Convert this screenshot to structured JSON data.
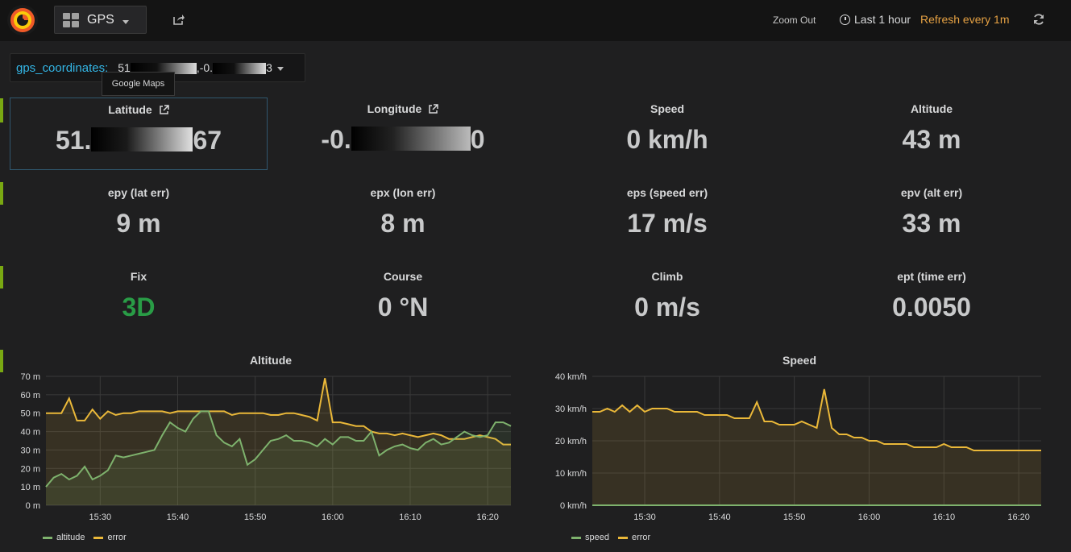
{
  "topbar": {
    "dashboard_title": "GPS",
    "zoom_out": "Zoom Out",
    "time_range": "Last 1 hour",
    "refresh": "Refresh every 1m"
  },
  "variable": {
    "label": "gps_coordinates:",
    "value_prefix": "51",
    "value_mid": ",-0.",
    "value_suffix": "3",
    "tooltip": "Google Maps"
  },
  "stats": [
    {
      "title": "Latitude",
      "value_prefix": "51.",
      "value_suffix": "67"
    },
    {
      "title": "Longitude",
      "value_prefix": "-0.",
      "value_suffix": "0"
    },
    {
      "title": "Speed",
      "value": "0 km/h"
    },
    {
      "title": "Altitude",
      "value": "43 m"
    },
    {
      "title": "epy (lat err)",
      "value": "9 m"
    },
    {
      "title": "epx (lon err)",
      "value": "8 m"
    },
    {
      "title": "eps (speed err)",
      "value": "17 m/s"
    },
    {
      "title": "epv (alt err)",
      "value": "33 m"
    },
    {
      "title": "Fix",
      "value": "3D"
    },
    {
      "title": "Course",
      "value": "0 °N"
    },
    {
      "title": "Climb",
      "value": "0 m/s"
    },
    {
      "title": "ept (time err)",
      "value": "0.0050"
    }
  ],
  "colors": {
    "accent": "#e5a143",
    "green": "#299c46",
    "series_green": "#7eb26d",
    "series_yellow": "#eab839"
  },
  "chart_data": [
    {
      "type": "line",
      "title": "Altitude",
      "ylim": [
        0,
        70
      ],
      "yticks": [
        "0 m",
        "10 m",
        "20 m",
        "30 m",
        "40 m",
        "50 m",
        "60 m",
        "70 m"
      ],
      "xlim": [
        "15:23",
        "16:23"
      ],
      "xticks": [
        "15:30",
        "15:40",
        "15:50",
        "16:00",
        "16:10",
        "16:20"
      ],
      "x": [
        "15:23",
        "15:24",
        "15:25",
        "15:26",
        "15:27",
        "15:28",
        "15:29",
        "15:30",
        "15:31",
        "15:32",
        "15:33",
        "15:34",
        "15:35",
        "15:36",
        "15:37",
        "15:38",
        "15:39",
        "15:40",
        "15:41",
        "15:42",
        "15:43",
        "15:44",
        "15:45",
        "15:46",
        "15:47",
        "15:48",
        "15:49",
        "15:50",
        "15:51",
        "15:52",
        "15:53",
        "15:54",
        "15:55",
        "15:56",
        "15:57",
        "15:58",
        "15:59",
        "16:00",
        "16:01",
        "16:02",
        "16:03",
        "16:04",
        "16:05",
        "16:06",
        "16:07",
        "16:08",
        "16:09",
        "16:10",
        "16:11",
        "16:12",
        "16:13",
        "16:14",
        "16:15",
        "16:16",
        "16:17",
        "16:18",
        "16:19",
        "16:20",
        "16:21",
        "16:22",
        "16:23"
      ],
      "series": [
        {
          "name": "altitude",
          "values": [
            10,
            15,
            17,
            14,
            16,
            21,
            14,
            16,
            19,
            27,
            26,
            27,
            28,
            29,
            30,
            38,
            45,
            42,
            40,
            47,
            51,
            51,
            38,
            34,
            32,
            36,
            22,
            25,
            30,
            35,
            36,
            38,
            35,
            35,
            34,
            32,
            36,
            33,
            37,
            37,
            35,
            35,
            40,
            27,
            30,
            32,
            33,
            31,
            30,
            34,
            36,
            33,
            34,
            37,
            40,
            38,
            37,
            38,
            45,
            45,
            43
          ]
        },
        {
          "name": "error",
          "values": [
            50,
            50,
            50,
            58,
            46,
            46,
            52,
            47,
            51,
            49,
            50,
            50,
            51,
            51,
            51,
            51,
            50,
            51,
            51,
            51,
            51,
            51,
            51,
            51,
            49,
            50,
            50,
            50,
            50,
            49,
            49,
            50,
            50,
            49,
            48,
            46,
            69,
            45,
            45,
            44,
            43,
            43,
            40,
            39,
            39,
            38,
            39,
            38,
            37,
            38,
            39,
            38,
            36,
            36,
            36,
            37,
            38,
            37,
            36,
            33,
            33
          ]
        }
      ]
    },
    {
      "type": "line",
      "title": "Speed",
      "ylim": [
        0,
        40
      ],
      "yticks": [
        "0 km/h",
        "10 km/h",
        "20 km/h",
        "30 km/h",
        "40 km/h"
      ],
      "xlim": [
        "15:23",
        "16:23"
      ],
      "xticks": [
        "15:30",
        "15:40",
        "15:50",
        "16:00",
        "16:10",
        "16:20"
      ],
      "x": [
        "15:23",
        "15:24",
        "15:25",
        "15:26",
        "15:27",
        "15:28",
        "15:29",
        "15:30",
        "15:31",
        "15:32",
        "15:33",
        "15:34",
        "15:35",
        "15:36",
        "15:37",
        "15:38",
        "15:39",
        "15:40",
        "15:41",
        "15:42",
        "15:43",
        "15:44",
        "15:45",
        "15:46",
        "15:47",
        "15:48",
        "15:49",
        "15:50",
        "15:51",
        "15:52",
        "15:53",
        "15:54",
        "15:55",
        "15:56",
        "15:57",
        "15:58",
        "15:59",
        "16:00",
        "16:01",
        "16:02",
        "16:03",
        "16:04",
        "16:05",
        "16:06",
        "16:07",
        "16:08",
        "16:09",
        "16:10",
        "16:11",
        "16:12",
        "16:13",
        "16:14",
        "16:15",
        "16:16",
        "16:17",
        "16:18",
        "16:19",
        "16:20",
        "16:21",
        "16:22",
        "16:23"
      ],
      "series": [
        {
          "name": "speed",
          "values": [
            0,
            0,
            0,
            0,
            0,
            0,
            0,
            0,
            0,
            0,
            0,
            0,
            0,
            0,
            0,
            0,
            0,
            0,
            0,
            0,
            0,
            0,
            0,
            0,
            0,
            0,
            0,
            0,
            0,
            0,
            0,
            0,
            0,
            0,
            0,
            0,
            0,
            0,
            0,
            0,
            0,
            0,
            0,
            0,
            0,
            0,
            0,
            0,
            0,
            0,
            0,
            0,
            0,
            0,
            0,
            0,
            0,
            0,
            0,
            0,
            0
          ]
        },
        {
          "name": "error",
          "values": [
            29,
            29,
            30,
            29,
            31,
            29,
            31,
            29,
            30,
            30,
            30,
            29,
            29,
            29,
            29,
            28,
            28,
            28,
            28,
            27,
            27,
            27,
            32,
            26,
            26,
            25,
            25,
            25,
            26,
            25,
            24,
            36,
            24,
            22,
            22,
            21,
            21,
            20,
            20,
            19,
            19,
            19,
            19,
            18,
            18,
            18,
            18,
            19,
            18,
            18,
            18,
            17,
            17,
            17,
            17,
            17,
            17,
            17,
            17,
            17,
            17
          ]
        }
      ]
    }
  ]
}
